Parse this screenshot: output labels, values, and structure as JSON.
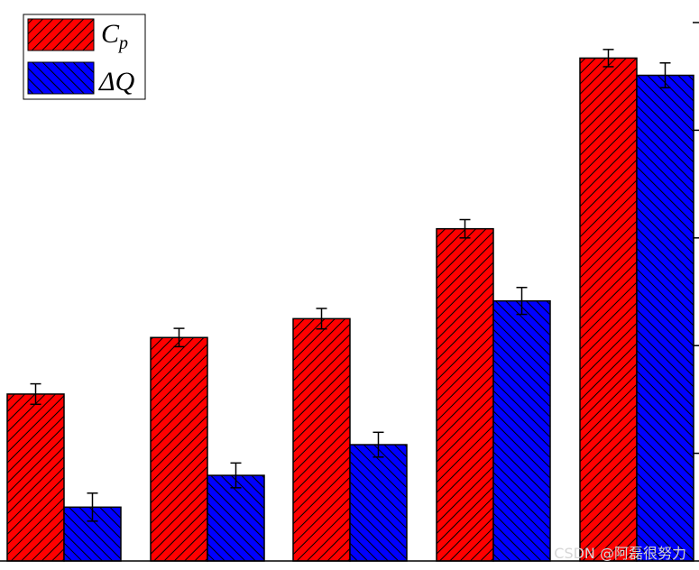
{
  "chart_data": {
    "type": "bar",
    "categories": [
      "",
      "",
      "",
      "",
      ""
    ],
    "series": [
      {
        "name": "Cp",
        "values": [
          0.31,
          0.415,
          0.45,
          0.617,
          0.934
        ],
        "errors": [
          0.019,
          0.017,
          0.019,
          0.017,
          0.016
        ],
        "color": "#ff0000",
        "hatch": "forward"
      },
      {
        "name": "ΔQ",
        "values": [
          0.1,
          0.159,
          0.216,
          0.483,
          0.902
        ],
        "errors": [
          0.026,
          0.023,
          0.023,
          0.025,
          0.023
        ],
        "color": "#0000ff",
        "hatch": "backward"
      }
    ],
    "ylim": [
      0,
      1.0
    ],
    "title": "",
    "xlabel": "",
    "ylabel": "",
    "grid": false,
    "legend_position": "top-left",
    "legend": {
      "cp_main": "C",
      "cp_sub": "p",
      "dq": "ΔQ"
    }
  },
  "watermark": "CSDN @阿磊很努力"
}
